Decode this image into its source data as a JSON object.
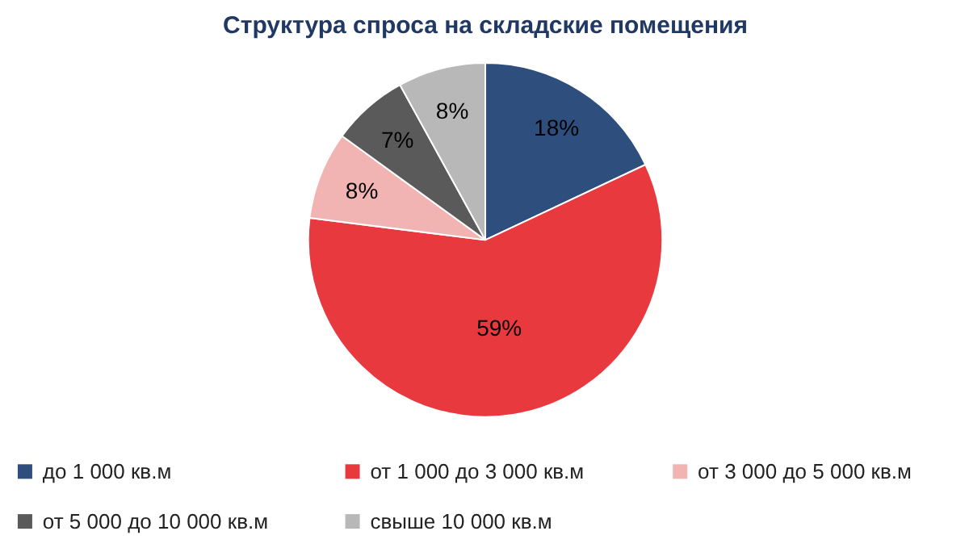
{
  "chart_data": {
    "type": "pie",
    "title": "Структура спроса на складские помещения",
    "categories": [
      "до 1 000 кв.м",
      "от 1 000 до 3 000 кв.м",
      "от 3 000 до 5 000 кв.м",
      "от 5 000 до 10 000 кв.м",
      "свыше 10 000 кв.м"
    ],
    "values": [
      18,
      59,
      8,
      7,
      8
    ],
    "colors": [
      "#2e4e7e",
      "#e8393f",
      "#f2b3b3",
      "#5a5a5a",
      "#b8b8b8"
    ],
    "value_labels": [
      "18%",
      "59%",
      "8%",
      "7%",
      "8%"
    ],
    "legend": "bottom"
  }
}
